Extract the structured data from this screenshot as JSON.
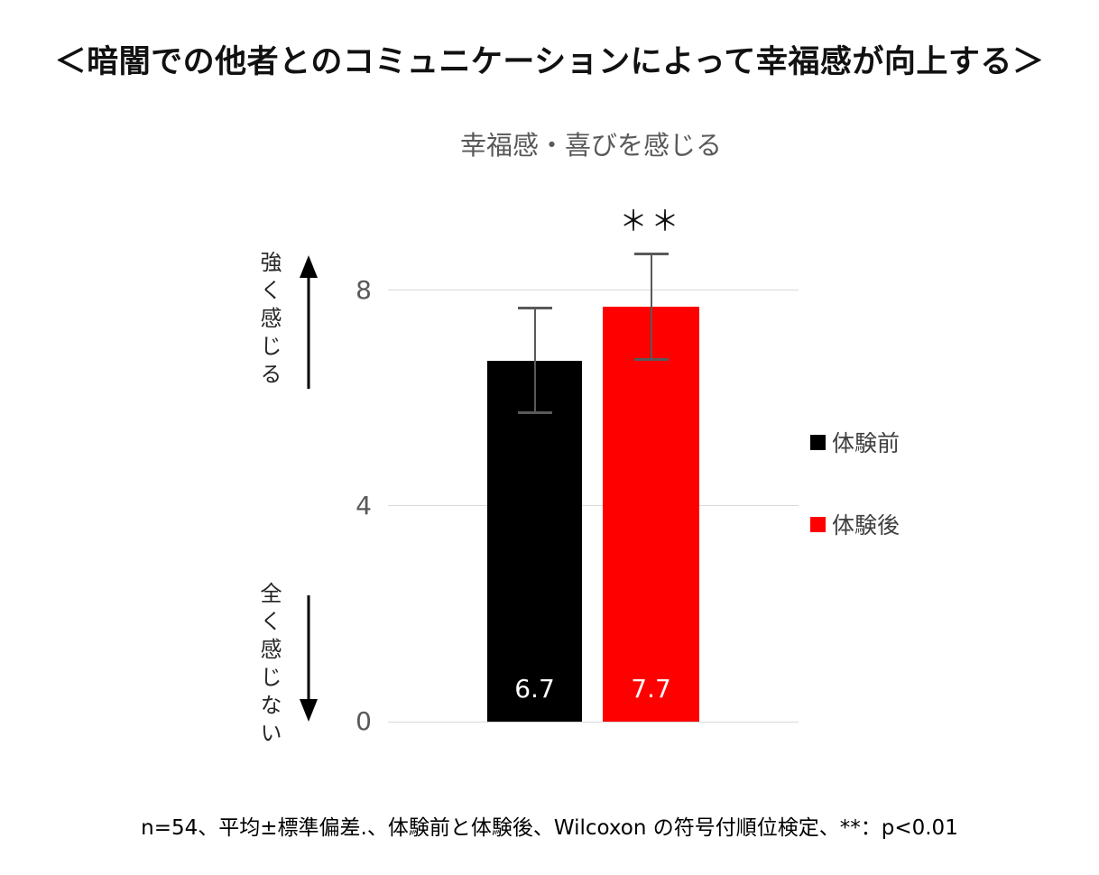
{
  "page": {
    "title": "＜暗闇での他者とのコミュニケーションによって幸福感が向上する＞",
    "footnote": "n=54、平均±標準偏差.、体験前と体験後、Wilcoxon の符号付順位検定、**：p<0.01"
  },
  "chart_data": {
    "type": "bar",
    "title": "幸福感・喜びを感じる",
    "categories": [
      "体験前",
      "体験後"
    ],
    "series": [
      {
        "name": "体験前",
        "value": 6.7,
        "error": 1.0,
        "color": "#000000"
      },
      {
        "name": "体験後",
        "value": 7.7,
        "error": 1.0,
        "color": "#ff0000"
      }
    ],
    "value_labels": [
      "6.7",
      "7.7"
    ],
    "significance_label": "＊＊",
    "significance_on": "体験後",
    "yticks": [
      0,
      4,
      8
    ],
    "ylim": [
      0,
      8.7
    ],
    "grid": true,
    "gridline_color": "#d9d9d9",
    "error_bar_color": "#595959",
    "axis_annotations": {
      "top": "強く感じる",
      "bottom": "全く感じない",
      "top_icon": "arrow-up-icon",
      "bottom_icon": "arrow-down-icon"
    },
    "legend": [
      {
        "label": "体験前",
        "color": "#000000"
      },
      {
        "label": "体験後",
        "color": "#ff0000"
      }
    ],
    "legend_position": "right"
  }
}
